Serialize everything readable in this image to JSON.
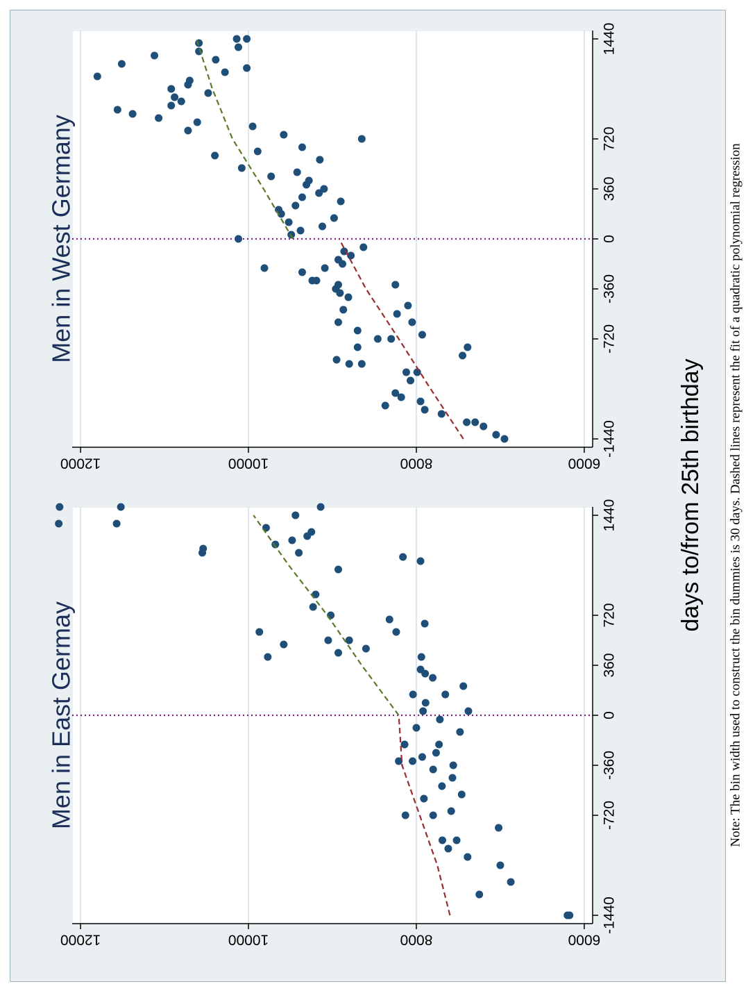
{
  "figure": {
    "xlabel": "days to/from 25th birthday",
    "note": "Note: The bin width used to construct the bin dummies is 30 days. Dashed lines represent the fit of a quadratic polynomial regression"
  },
  "chart_data": [
    {
      "type": "scatter",
      "title": "Men in East Germay",
      "xlabel": "days to/from 25th birthday",
      "ylabel": "",
      "x_ticks": [
        -1440,
        -720,
        -360,
        0,
        360,
        720,
        1440
      ],
      "y_ticks": [
        6000,
        8000,
        10000,
        12000
      ],
      "xlim": [
        -1500,
        1500
      ],
      "ylim": [
        5900,
        12100
      ],
      "grid": true,
      "cutoff": 0,
      "colors": {
        "points": "#1f4e79",
        "fit_left": "#9b2d2d",
        "fit_right": "#5a7a2a",
        "cutoff": "#8b1a8b",
        "grid": "#dde8ec"
      },
      "points": [
        [
          -1440,
          6175
        ],
        [
          -1440,
          6200
        ],
        [
          -1290,
          7250
        ],
        [
          -1200,
          6875
        ],
        [
          -1080,
          7000
        ],
        [
          -1020,
          7390
        ],
        [
          -960,
          7620
        ],
        [
          -900,
          7520
        ],
        [
          -900,
          7690
        ],
        [
          -810,
          7020
        ],
        [
          -720,
          7800
        ],
        [
          -720,
          8130
        ],
        [
          -690,
          7585
        ],
        [
          -600,
          7910
        ],
        [
          -570,
          7460
        ],
        [
          -510,
          7695
        ],
        [
          -450,
          7570
        ],
        [
          -390,
          7800
        ],
        [
          -360,
          7560
        ],
        [
          -330,
          8045
        ],
        [
          -330,
          8210
        ],
        [
          -300,
          7930
        ],
        [
          -270,
          7765
        ],
        [
          -210,
          7730
        ],
        [
          -210,
          8140
        ],
        [
          -120,
          7480
        ],
        [
          -90,
          8000
        ],
        [
          -30,
          7720
        ],
        [
          30,
          7920
        ],
        [
          30,
          7380
        ],
        [
          90,
          7890
        ],
        [
          150,
          8040
        ],
        [
          150,
          7655
        ],
        [
          210,
          7440
        ],
        [
          270,
          7805
        ],
        [
          300,
          7895
        ],
        [
          330,
          7950
        ],
        [
          420,
          7940
        ],
        [
          420,
          9770
        ],
        [
          450,
          8930
        ],
        [
          480,
          8600
        ],
        [
          510,
          9580
        ],
        [
          540,
          9050
        ],
        [
          540,
          8800
        ],
        [
          600,
          8240
        ],
        [
          600,
          9870
        ],
        [
          660,
          7900
        ],
        [
          690,
          8320
        ],
        [
          720,
          9020
        ],
        [
          780,
          9230
        ],
        [
          870,
          9200
        ],
        [
          1050,
          8930
        ],
        [
          1110,
          7950
        ],
        [
          1140,
          8160
        ],
        [
          1170,
          9400
        ],
        [
          1170,
          10550
        ],
        [
          1200,
          10540
        ],
        [
          1230,
          9680
        ],
        [
          1260,
          9480
        ],
        [
          1290,
          9300
        ],
        [
          1320,
          9250
        ],
        [
          1350,
          9790
        ],
        [
          1380,
          12260
        ],
        [
          1380,
          11570
        ],
        [
          1440,
          9440
        ],
        [
          1500,
          11520
        ],
        [
          1500,
          12250
        ],
        [
          1500,
          9140
        ]
      ],
      "fit_left": [
        [
          -1440,
          7600
        ],
        [
          -1080,
          7750
        ],
        [
          -720,
          7960
        ],
        [
          -360,
          8170
        ],
        [
          0,
          8210
        ]
      ],
      "fit_right": [
        [
          0,
          8210
        ],
        [
          360,
          8650
        ],
        [
          720,
          9060
        ],
        [
          1080,
          9520
        ],
        [
          1440,
          9940
        ]
      ]
    },
    {
      "type": "scatter",
      "title": "Men in West Germany",
      "xlabel": "days to/from 25th birthday",
      "ylabel": "",
      "x_ticks": [
        -1440,
        -720,
        -360,
        0,
        360,
        720,
        1440
      ],
      "y_ticks": [
        6000,
        8000,
        10000,
        12000
      ],
      "xlim": [
        -1500,
        1500
      ],
      "ylim": [
        5900,
        12100
      ],
      "grid": true,
      "cutoff": 0,
      "colors": {
        "points": "#1f4e79",
        "fit_left": "#9b2d2d",
        "fit_right": "#5a7a2a",
        "cutoff": "#8b1a8b",
        "grid": "#dde8ec"
      },
      "points": [
        [
          -1440,
          6950
        ],
        [
          -1410,
          7050
        ],
        [
          -1350,
          7200
        ],
        [
          -1320,
          7400
        ],
        [
          -1320,
          7300
        ],
        [
          -1260,
          7700
        ],
        [
          -1230,
          7900
        ],
        [
          -1200,
          8370
        ],
        [
          -1170,
          7950
        ],
        [
          -1140,
          8180
        ],
        [
          -1110,
          8250
        ],
        [
          -1020,
          8070
        ],
        [
          -960,
          7990
        ],
        [
          -960,
          8120
        ],
        [
          -900,
          8650
        ],
        [
          -900,
          8800
        ],
        [
          -870,
          8950
        ],
        [
          -840,
          7450
        ],
        [
          -780,
          7390
        ],
        [
          -780,
          8700
        ],
        [
          -720,
          8300
        ],
        [
          -720,
          8460
        ],
        [
          -690,
          7930
        ],
        [
          -660,
          8700
        ],
        [
          -600,
          8050
        ],
        [
          -600,
          8930
        ],
        [
          -540,
          8230
        ],
        [
          -510,
          8870
        ],
        [
          -480,
          8100
        ],
        [
          -420,
          8810
        ],
        [
          -390,
          8910
        ],
        [
          -360,
          8960
        ],
        [
          -330,
          8250
        ],
        [
          -330,
          8930
        ],
        [
          -300,
          9190
        ],
        [
          -300,
          9240
        ],
        [
          -240,
          9360
        ],
        [
          -210,
          9090
        ],
        [
          -210,
          9810
        ],
        [
          -180,
          8880
        ],
        [
          -150,
          8930
        ],
        [
          -120,
          8780
        ],
        [
          -90,
          8860
        ],
        [
          -60,
          8630
        ],
        [
          0,
          10120
        ],
        [
          30,
          9490
        ],
        [
          60,
          9380
        ],
        [
          90,
          9120
        ],
        [
          120,
          9520
        ],
        [
          150,
          8980
        ],
        [
          180,
          9610
        ],
        [
          210,
          9640
        ],
        [
          240,
          9440
        ],
        [
          270,
          8900
        ],
        [
          300,
          9360
        ],
        [
          330,
          9160
        ],
        [
          360,
          9100
        ],
        [
          390,
          9310
        ],
        [
          420,
          9280
        ],
        [
          450,
          9730
        ],
        [
          480,
          9420
        ],
        [
          510,
          10080
        ],
        [
          570,
          9150
        ],
        [
          600,
          10400
        ],
        [
          630,
          9890
        ],
        [
          660,
          9360
        ],
        [
          720,
          8650
        ],
        [
          750,
          9580
        ],
        [
          780,
          10720
        ],
        [
          810,
          9950
        ],
        [
          840,
          10610
        ],
        [
          870,
          11070
        ],
        [
          900,
          11380
        ],
        [
          930,
          11560
        ],
        [
          960,
          10920
        ],
        [
          990,
          10800
        ],
        [
          1020,
          10880
        ],
        [
          1050,
          10480
        ],
        [
          1080,
          10920
        ],
        [
          1110,
          10720
        ],
        [
          1140,
          10700
        ],
        [
          1170,
          11800
        ],
        [
          1200,
          10280
        ],
        [
          1230,
          10020
        ],
        [
          1260,
          11510
        ],
        [
          1290,
          10390
        ],
        [
          1320,
          11120
        ],
        [
          1350,
          10590
        ],
        [
          1380,
          10120
        ],
        [
          1410,
          10590
        ],
        [
          1440,
          10020
        ],
        [
          1440,
          10140
        ]
      ],
      "fit_left": [
        [
          -1440,
          7440
        ],
        [
          -1080,
          7830
        ],
        [
          -720,
          8210
        ],
        [
          -360,
          8600
        ],
        [
          0,
          8920
        ]
      ],
      "fit_right": [
        [
          0,
          9470
        ],
        [
          360,
          9820
        ],
        [
          720,
          10190
        ],
        [
          1080,
          10430
        ],
        [
          1440,
          10620
        ]
      ]
    }
  ]
}
